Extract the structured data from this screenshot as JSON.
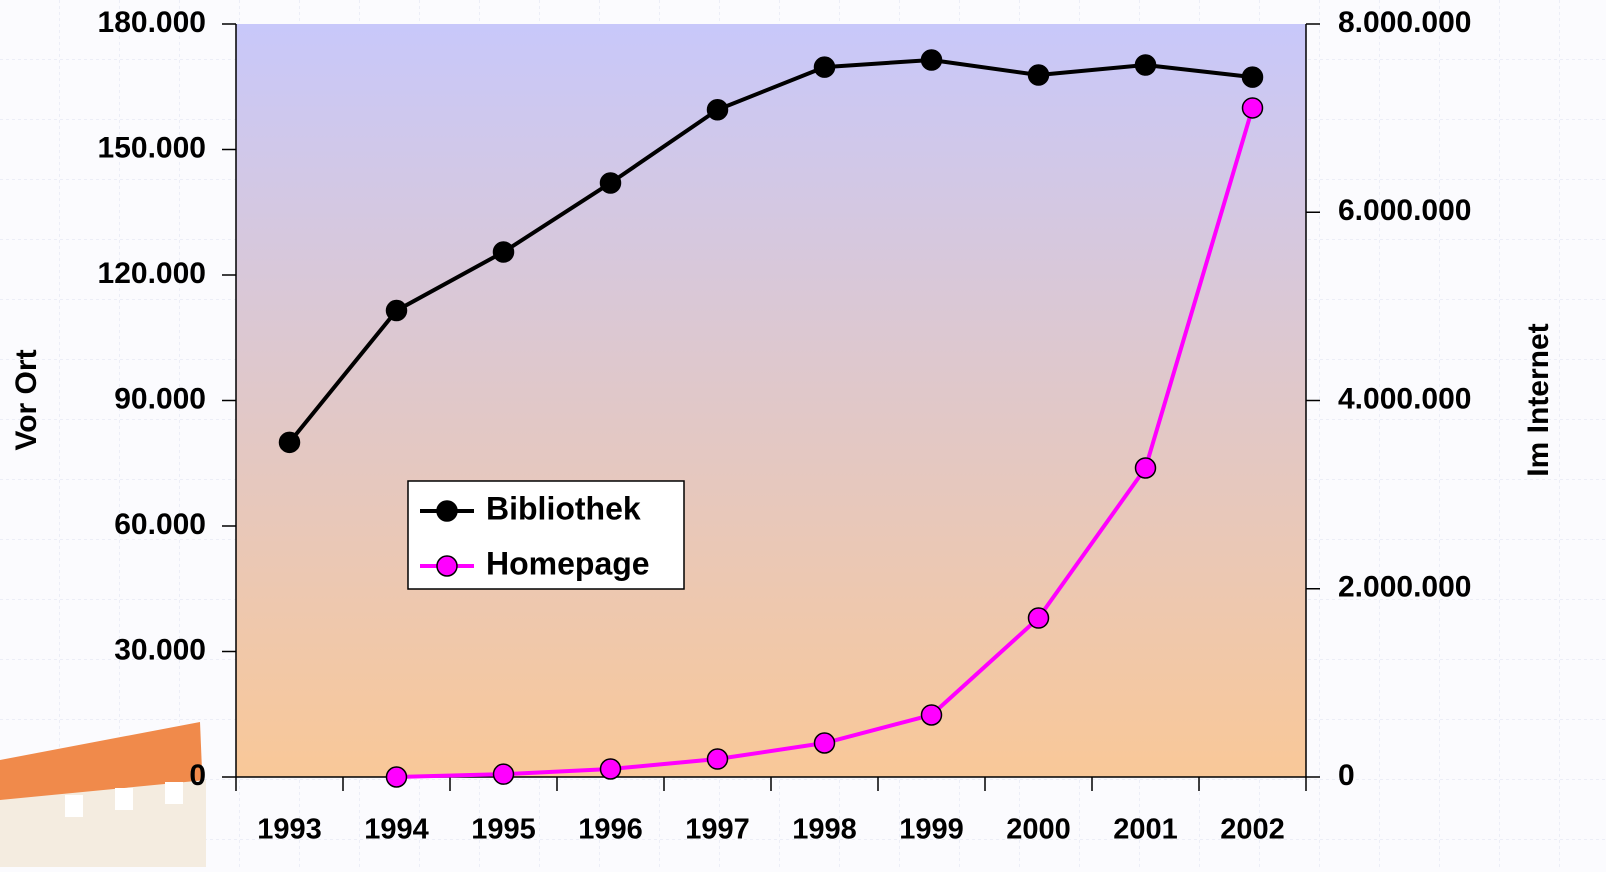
{
  "chart_data": {
    "type": "line",
    "categories": [
      "1993",
      "1994",
      "1995",
      "1996",
      "1997",
      "1998",
      "1999",
      "2000",
      "2001",
      "2002"
    ],
    "series": [
      {
        "name": "Bibliothek",
        "color": "#000000",
        "axis": "y",
        "values": [
          80000,
          111500,
          125500,
          142000,
          159500,
          169700,
          171400,
          167800,
          170200,
          167300
        ]
      },
      {
        "name": "Homepage",
        "color": "#ff00ff",
        "axis": "y2",
        "values": [
          null,
          0,
          30000,
          85000,
          191000,
          361000,
          659000,
          1689000,
          3283000,
          7108000
        ]
      }
    ],
    "ylabel": "Vor Ort",
    "y2label": "Im Internet",
    "ylim": [
      0,
      180000
    ],
    "yticks": [
      0,
      {
        "value": 30000,
        "label": "30.000"
      },
      {
        "value": 60000,
        "label": "60.000"
      },
      {
        "value": 90000,
        "label": "90.000"
      },
      {
        "value": 120000,
        "label": "120.000"
      },
      {
        "value": 150000,
        "label": "150.000"
      },
      {
        "value": 180000,
        "label": "180.000"
      }
    ],
    "y2lim": [
      0,
      8000000
    ],
    "y2ticks": [
      0,
      {
        "value": 2000000,
        "label": "2.000.000"
      },
      {
        "value": 4000000,
        "label": "4.000.000"
      },
      {
        "value": 6000000,
        "label": "6.000.000"
      },
      {
        "value": 8000000,
        "label": "8.000.000"
      }
    ],
    "grid": false
  }
}
